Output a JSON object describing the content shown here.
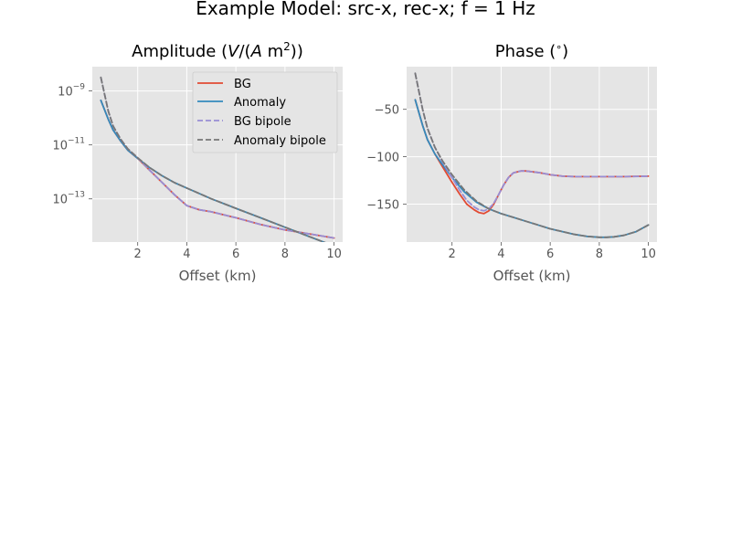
{
  "figure": {
    "suptitle": "Example Model: src-x, rec-x; f = 1 Hz"
  },
  "colors": {
    "axes_bg": "#e5e5e5",
    "grid": "#ffffff",
    "tick_text": "#555555",
    "label_text": "#555555",
    "title_text": "#000000",
    "bg": "#e24a33",
    "anomaly": "#348abd",
    "bg_bipole": "#988ed5",
    "anomaly_bipole": "#777777"
  },
  "chart_data": [
    {
      "type": "line",
      "title_parts": [
        "Amplitude (",
        "V",
        "/(",
        "A",
        " m",
        "2",
        "))"
      ],
      "xlabel": "Offset (km)",
      "ylabel": "",
      "xlim": [
        0.15,
        10.35
      ],
      "yscale": "log",
      "ylim_log10": [
        -14.6,
        -8.1
      ],
      "xticks": [
        2,
        4,
        6,
        8,
        10
      ],
      "yticks": [
        {
          "base": "10",
          "exp": "−9",
          "log10": -9
        },
        {
          "base": "10",
          "exp": "−11",
          "log10": -11
        },
        {
          "base": "10",
          "exp": "−13",
          "log10": -13
        }
      ],
      "grid": true,
      "legend_position": "top-right",
      "legend": [
        "BG",
        "Anomaly",
        "BG bipole",
        "Anomaly bipole"
      ],
      "series": [
        {
          "name": "BG",
          "color_key": "bg",
          "dashed": false,
          "x": [
            0.5,
            0.8,
            1.0,
            1.3,
            1.6,
            2.0,
            2.5,
            3.0,
            3.5,
            4.0,
            4.5,
            5.0,
            6.0,
            7.0,
            8.0,
            9.0,
            10.0
          ],
          "log10_y": [
            -9.35,
            -10.05,
            -10.45,
            -10.85,
            -11.2,
            -11.5,
            -11.95,
            -12.4,
            -12.85,
            -13.25,
            -13.4,
            -13.48,
            -13.7,
            -13.95,
            -14.15,
            -14.3,
            -14.45
          ]
        },
        {
          "name": "Anomaly",
          "color_key": "anomaly",
          "dashed": false,
          "x": [
            0.5,
            0.8,
            1.0,
            1.3,
            1.6,
            2.0,
            2.5,
            3.0,
            3.5,
            4.0,
            4.5,
            5.0,
            6.0,
            7.0,
            8.0,
            9.0,
            10.0
          ],
          "log10_y": [
            -9.35,
            -10.05,
            -10.45,
            -10.85,
            -11.2,
            -11.5,
            -11.85,
            -12.15,
            -12.4,
            -12.6,
            -12.8,
            -13.0,
            -13.35,
            -13.7,
            -14.05,
            -14.4,
            -14.75
          ]
        },
        {
          "name": "BG bipole",
          "color_key": "bg_bipole",
          "dashed": true,
          "x": [
            0.5,
            0.8,
            1.0,
            1.3,
            1.6,
            2.0,
            2.5,
            3.0,
            3.5,
            4.0,
            4.5,
            5.0,
            6.0,
            7.0,
            8.0,
            9.0,
            10.0
          ],
          "log10_y": [
            -8.5,
            -9.75,
            -10.3,
            -10.78,
            -11.15,
            -11.48,
            -11.95,
            -12.4,
            -12.85,
            -13.25,
            -13.4,
            -13.48,
            -13.7,
            -13.95,
            -14.15,
            -14.3,
            -14.45
          ]
        },
        {
          "name": "Anomaly bipole",
          "color_key": "anomaly_bipole",
          "dashed": true,
          "x": [
            0.5,
            0.8,
            1.0,
            1.3,
            1.6,
            2.0,
            2.5,
            3.0,
            3.5,
            4.0,
            4.5,
            5.0,
            6.0,
            7.0,
            8.0,
            9.0,
            10.0
          ],
          "log10_y": [
            -8.5,
            -9.75,
            -10.3,
            -10.78,
            -11.15,
            -11.48,
            -11.85,
            -12.15,
            -12.4,
            -12.6,
            -12.8,
            -13.0,
            -13.35,
            -13.7,
            -14.05,
            -14.4,
            -14.75
          ]
        }
      ]
    },
    {
      "type": "line",
      "title_parts": [
        "Phase (",
        "∘",
        ")"
      ],
      "xlabel": "Offset (km)",
      "ylabel": "",
      "xlim": [
        0.15,
        10.35
      ],
      "yscale": "linear",
      "ylim": [
        -190,
        -5
      ],
      "xticks": [
        2,
        4,
        6,
        8,
        10
      ],
      "yticks": [
        -50,
        -100,
        -150
      ],
      "ytick_labels": [
        "−50",
        "−100",
        "−150"
      ],
      "grid": true,
      "series": [
        {
          "name": "BG",
          "color_key": "bg",
          "dashed": false,
          "x": [
            0.5,
            0.8,
            1.0,
            1.3,
            1.6,
            2.0,
            2.3,
            2.6,
            2.9,
            3.1,
            3.3,
            3.5,
            3.7,
            3.9,
            4.1,
            4.3,
            4.5,
            4.8,
            5.0,
            5.3,
            5.6,
            6.0,
            6.5,
            7.0,
            8.0,
            9.0,
            10.0
          ],
          "y": [
            -40,
            -67,
            -82,
            -97,
            -110,
            -127,
            -139,
            -150,
            -156,
            -159,
            -160,
            -157,
            -150,
            -140,
            -130,
            -122,
            -117,
            -115,
            -115,
            -116,
            -117,
            -119,
            -120.5,
            -121,
            -121,
            -121,
            -120.5
          ]
        },
        {
          "name": "Anomaly",
          "color_key": "anomaly",
          "dashed": false,
          "x": [
            0.5,
            0.8,
            1.0,
            1.3,
            1.6,
            2.0,
            2.5,
            3.0,
            3.5,
            4.0,
            4.5,
            5.0,
            5.5,
            6.0,
            6.5,
            7.0,
            7.5,
            8.0,
            8.3,
            8.6,
            9.0,
            9.5,
            10.0
          ],
          "y": [
            -40,
            -67,
            -82,
            -97,
            -108,
            -122,
            -137,
            -148,
            -155,
            -160,
            -164,
            -168,
            -172,
            -176,
            -179,
            -182,
            -184,
            -185,
            -185,
            -184.5,
            -183,
            -179,
            -172
          ]
        },
        {
          "name": "BG bipole",
          "color_key": "bg_bipole",
          "dashed": true,
          "x": [
            0.5,
            0.8,
            1.0,
            1.3,
            1.6,
            2.0,
            2.3,
            2.6,
            2.9,
            3.1,
            3.3,
            3.5,
            3.7,
            3.9,
            4.1,
            4.3,
            4.5,
            4.8,
            5.0,
            5.3,
            5.6,
            6.0,
            6.5,
            7.0,
            8.0,
            9.0,
            10.0
          ],
          "y": [
            -12,
            -50,
            -70,
            -90,
            -105,
            -122,
            -135,
            -146,
            -153,
            -156,
            -157,
            -155,
            -149,
            -140,
            -130,
            -122,
            -117,
            -115,
            -115,
            -116,
            -117,
            -119,
            -120.5,
            -121,
            -121,
            -121,
            -120.5
          ]
        },
        {
          "name": "Anomaly bipole",
          "color_key": "anomaly_bipole",
          "dashed": true,
          "x": [
            0.5,
            0.8,
            1.0,
            1.3,
            1.6,
            2.0,
            2.5,
            3.0,
            3.5,
            4.0,
            4.5,
            5.0,
            5.5,
            6.0,
            6.5,
            7.0,
            7.5,
            8.0,
            8.3,
            8.6,
            9.0,
            9.5,
            10.0
          ],
          "y": [
            -12,
            -50,
            -70,
            -90,
            -104,
            -119,
            -135,
            -147,
            -155,
            -160,
            -164,
            -168,
            -172,
            -176,
            -179,
            -182,
            -184,
            -185,
            -185,
            -184.5,
            -183,
            -179,
            -172
          ]
        }
      ]
    }
  ]
}
